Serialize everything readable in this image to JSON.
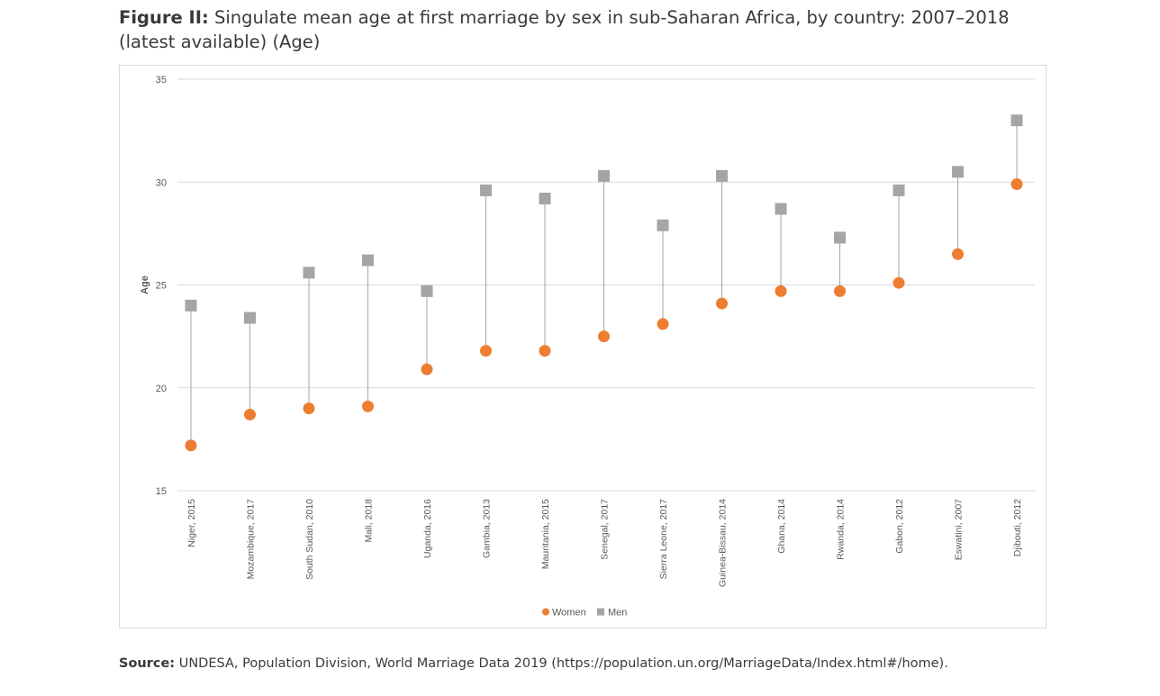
{
  "title": {
    "lead": "Figure II:",
    "text": "Singulate mean age at first marriage by sex in sub-Saharan Africa, by country: 2007–2018 (latest available) (Age)"
  },
  "source": {
    "lead": "Source:",
    "text": "UNDESA, Population Division, World Marriage Data 2019 (https://population.un.org/MarriageData/Index.html#/home)."
  },
  "colors": {
    "women": "#ed7d31",
    "men": "#a5a5a5",
    "connector": "#a6a6a6",
    "grid": "#d9d9d9"
  },
  "chart_data": {
    "type": "scatter",
    "ylabel": "Age",
    "ylim": [
      15,
      35
    ],
    "yticks": [
      15,
      20,
      25,
      30,
      35
    ],
    "grid": true,
    "legend_position": "bottom",
    "categories": [
      "Niger, 2015",
      "Mozambique, 2017",
      "South Sudan, 2010",
      "Mali, 2018",
      "Uganda, 2016",
      "Gambia, 2013",
      "Mauritania, 2015",
      "Senegal, 2017",
      "Sierra Leone, 2017",
      "Guinea-Bissau, 2014",
      "Ghana, 2014",
      "Rwanda, 2014",
      "Gabon, 2012",
      "Eswatini, 2007",
      "Djibouti, 2012"
    ],
    "series": [
      {
        "name": "Women",
        "marker": "circle",
        "values": [
          17.2,
          18.7,
          19.0,
          19.1,
          20.9,
          21.8,
          21.8,
          22.5,
          23.1,
          24.1,
          24.7,
          24.7,
          25.1,
          26.5,
          29.9
        ]
      },
      {
        "name": "Men",
        "marker": "square",
        "values": [
          24.0,
          23.4,
          25.6,
          26.2,
          24.7,
          29.6,
          29.2,
          30.3,
          27.9,
          30.3,
          28.7,
          27.3,
          29.6,
          30.5,
          33.0
        ]
      }
    ]
  }
}
